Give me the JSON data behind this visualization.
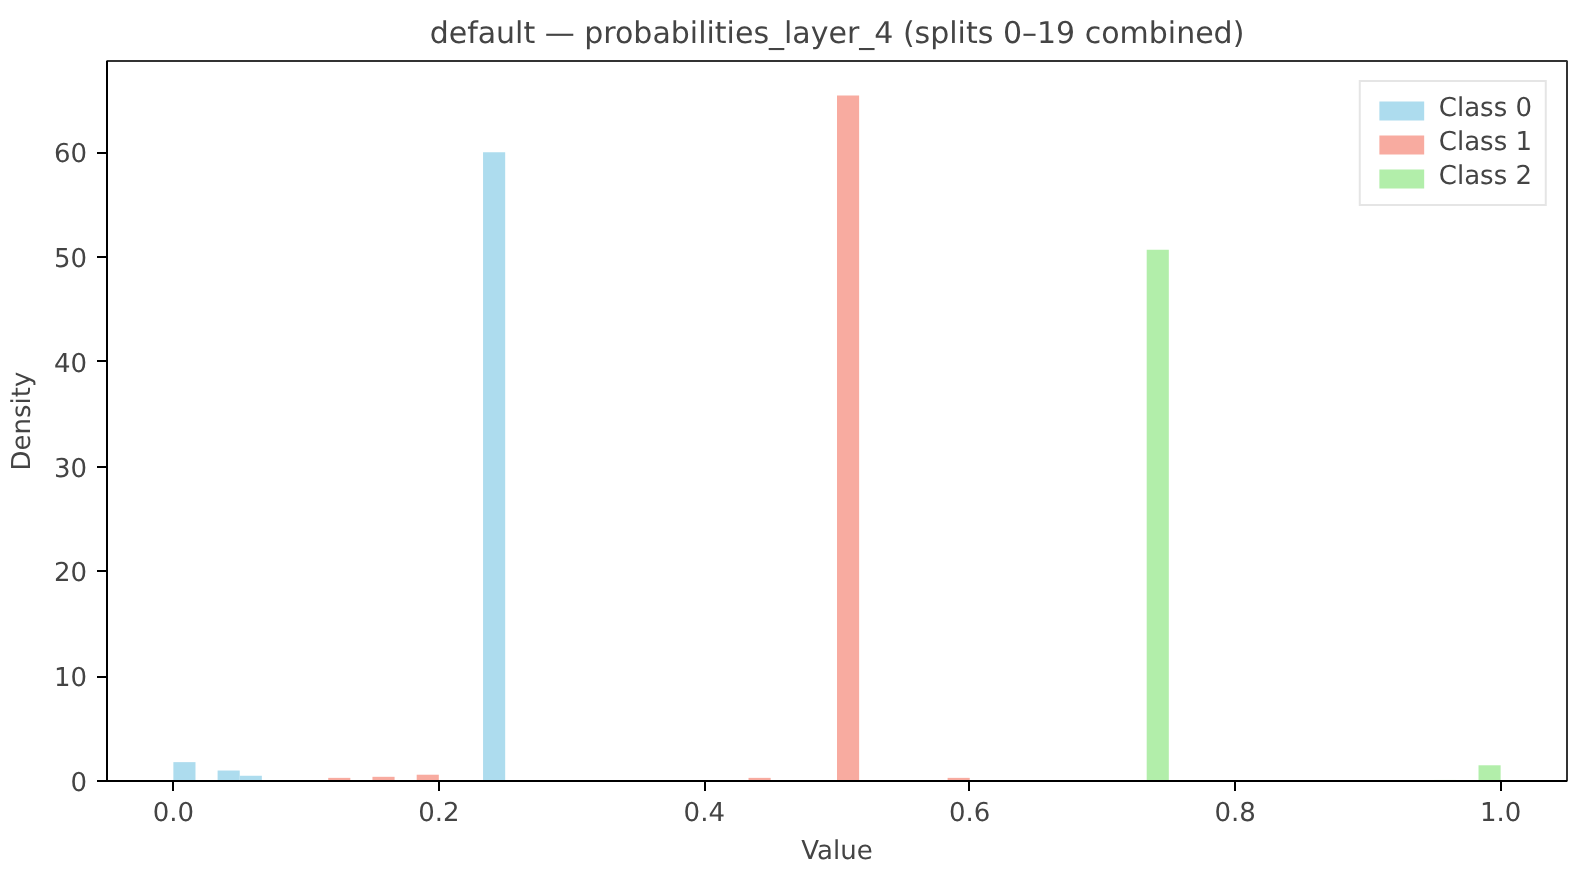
{
  "chart_data": {
    "type": "histogram",
    "title": "default — probabilities_layer_4 (splits 0–19 combined)",
    "xlabel": "Value",
    "ylabel": "Density",
    "bins": [
      0,
      0.01667,
      0.03333,
      0.05,
      0.06667,
      0.08333,
      0.1,
      0.11667,
      0.13333,
      0.15,
      0.16667,
      0.18333,
      0.2,
      0.21667,
      0.23333,
      0.25,
      0.26667,
      0.28333,
      0.3,
      0.31667,
      0.33333,
      0.35,
      0.36667,
      0.38333,
      0.4,
      0.41667,
      0.43333,
      0.45,
      0.46667,
      0.48333,
      0.5,
      0.51667,
      0.53333,
      0.55,
      0.56667,
      0.58333,
      0.6,
      0.61667,
      0.63333,
      0.65,
      0.66667,
      0.68333,
      0.7,
      0.71667,
      0.73333,
      0.75,
      0.76667,
      0.78333,
      0.8,
      0.81667,
      0.83333,
      0.85,
      0.86667,
      0.88333,
      0.9,
      0.91667,
      0.93333,
      0.95,
      0.96667,
      0.98333,
      1
    ],
    "series": [
      {
        "name": "Class 0",
        "color": "#addcee",
        "values": [
          1.8,
          0,
          1.0,
          0.5,
          0,
          0,
          0,
          0,
          0,
          0,
          0,
          0,
          0,
          0,
          60,
          0,
          0,
          0,
          0,
          0,
          0,
          0,
          0,
          0,
          0,
          0,
          0,
          0,
          0,
          0,
          0,
          0,
          0,
          0,
          0,
          0,
          0,
          0,
          0,
          0,
          0,
          0,
          0,
          0,
          0,
          0,
          0,
          0,
          0,
          0,
          0,
          0,
          0,
          0,
          0,
          0,
          0,
          0,
          0,
          0
        ]
      },
      {
        "name": "Class 1",
        "color": "#f8aba0",
        "values": [
          0,
          0,
          0,
          0,
          0,
          0,
          0,
          0.3,
          0,
          0.4,
          0,
          0.6,
          0,
          0,
          0,
          0,
          0,
          0,
          0,
          0,
          0,
          0,
          0,
          0,
          0,
          0,
          0.3,
          0,
          0,
          0,
          65.4,
          0,
          0,
          0,
          0,
          0.3,
          0,
          0,
          0,
          0,
          0,
          0,
          0,
          0,
          0,
          0,
          0,
          0,
          0,
          0,
          0,
          0,
          0,
          0,
          0,
          0,
          0,
          0,
          0,
          0
        ]
      },
      {
        "name": "Class 2",
        "color": "#b2eeaa",
        "values": [
          0,
          0,
          0,
          0,
          0,
          0,
          0,
          0,
          0,
          0,
          0,
          0,
          0,
          0,
          0,
          0,
          0,
          0,
          0,
          0,
          0,
          0,
          0,
          0,
          0,
          0,
          0,
          0,
          0,
          0,
          0,
          0,
          0,
          0,
          0,
          0,
          0,
          0,
          0,
          0,
          0,
          0,
          0,
          0,
          50.7,
          0,
          0,
          0,
          0,
          0,
          0,
          0,
          0,
          0,
          0,
          0,
          0,
          0.1,
          0,
          1.5
        ]
      }
    ],
    "xlim": [
      -0.05,
      1.05
    ],
    "ylim": [
      0,
      68.7
    ],
    "xticks": [
      {
        "value": 0,
        "label": "0.0"
      },
      {
        "value": 0.2,
        "label": "0.2"
      },
      {
        "value": 0.4,
        "label": "0.4"
      },
      {
        "value": 0.6,
        "label": "0.6"
      },
      {
        "value": 0.8,
        "label": "0.8"
      },
      {
        "value": 1,
        "label": "1.0"
      }
    ],
    "yticks": [
      0,
      10,
      20,
      30,
      40,
      50,
      60
    ],
    "legend": "top right",
    "grid": false
  }
}
